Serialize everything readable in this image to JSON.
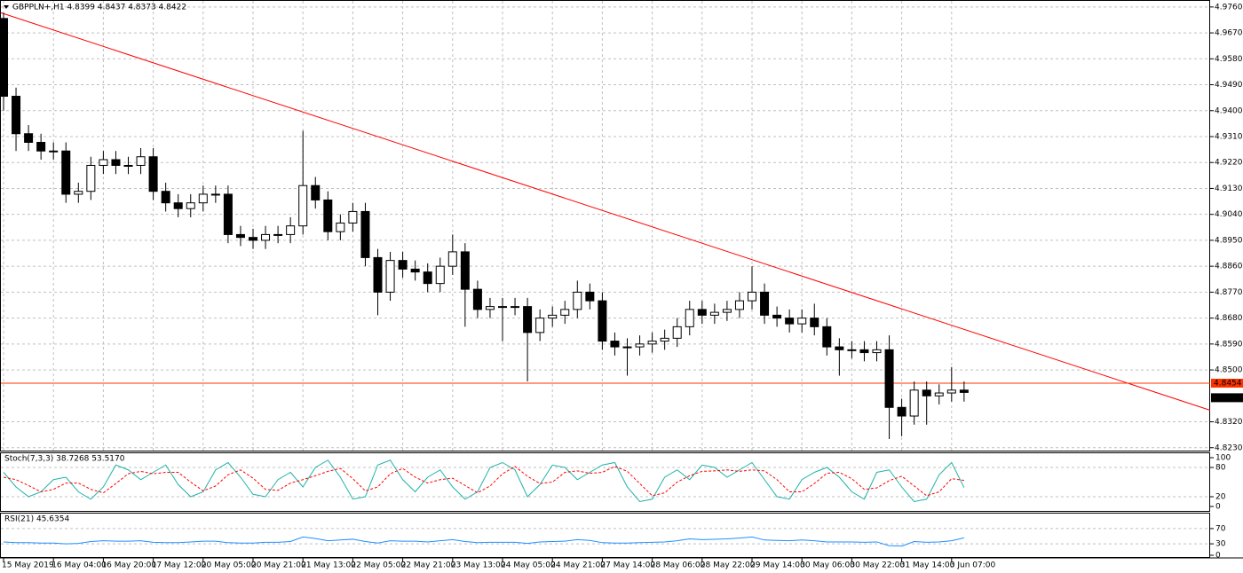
{
  "chart_data": [
    {
      "type": "candlestick",
      "title": "GBPPLN+,H1 4.8399 4.8437 4.8373 4.8422",
      "x_labels": [
        "15 May 2019",
        "16 May 04:00",
        "16 May 20:00",
        "17 May 12:00",
        "20 May 05:00",
        "20 May 21:00",
        "21 May 13:00",
        "22 May 05:00",
        "22 May 21:00",
        "23 May 13:00",
        "24 May 05:00",
        "24 May 21:00",
        "27 May 14:00",
        "28 May 06:00",
        "28 May 22:00",
        "29 May 14:00",
        "30 May 06:00",
        "30 May 22:00",
        "31 May 14:00",
        "3 Jun 07:00"
      ],
      "open": [
        4.972,
        4.945,
        4.932,
        4.929,
        4.926,
        4.926,
        4.911,
        4.912,
        4.921,
        4.923,
        4.921,
        4.921,
        4.924,
        4.912,
        4.908,
        4.906,
        4.908,
        4.911,
        4.911,
        4.897,
        4.896,
        4.895,
        4.897,
        4.897,
        4.9,
        4.914,
        4.909,
        4.898,
        4.901,
        4.905,
        4.889,
        4.877,
        4.888,
        4.885,
        4.884,
        4.88,
        4.886,
        4.891,
        4.878,
        4.871,
        4.872,
        4.872,
        4.872,
        4.863,
        4.868,
        4.869,
        4.871,
        4.877,
        4.874,
        4.86,
        4.858,
        4.858,
        4.859,
        4.86,
        4.861,
        4.865,
        4.871,
        4.869,
        4.87,
        4.871,
        4.874,
        4.877,
        4.869,
        4.868,
        4.866,
        4.868,
        4.865,
        4.858,
        4.857,
        4.857,
        4.856,
        4.857,
        4.837,
        4.834,
        4.843,
        4.841,
        4.842,
        4.843
      ],
      "high": [
        4.974,
        4.948,
        4.935,
        4.932,
        4.929,
        4.929,
        4.915,
        4.924,
        4.926,
        4.926,
        4.924,
        4.927,
        4.927,
        4.915,
        4.911,
        4.911,
        4.914,
        4.914,
        4.914,
        4.9,
        4.899,
        4.9,
        4.9,
        4.903,
        4.933,
        4.917,
        4.912,
        4.904,
        4.908,
        4.908,
        4.892,
        4.891,
        4.891,
        4.888,
        4.887,
        4.889,
        4.897,
        4.894,
        4.881,
        4.875,
        4.875,
        4.875,
        4.875,
        4.871,
        4.872,
        4.874,
        4.881,
        4.88,
        4.877,
        4.863,
        4.861,
        4.862,
        4.863,
        4.864,
        4.868,
        4.874,
        4.874,
        4.873,
        4.874,
        4.877,
        4.886,
        4.88,
        4.872,
        4.871,
        4.871,
        4.873,
        4.868,
        4.861,
        4.86,
        4.86,
        4.86,
        4.862,
        4.84,
        4.846,
        4.846,
        4.845,
        4.851,
        4.846
      ],
      "low": [
        4.94,
        4.926,
        4.926,
        4.923,
        4.923,
        4.908,
        4.908,
        4.909,
        4.918,
        4.918,
        4.918,
        4.918,
        4.909,
        4.905,
        4.903,
        4.903,
        4.905,
        4.908,
        4.894,
        4.893,
        4.892,
        4.892,
        4.894,
        4.894,
        4.897,
        4.906,
        4.895,
        4.895,
        4.898,
        4.886,
        4.869,
        4.874,
        4.882,
        4.881,
        4.877,
        4.877,
        4.883,
        4.865,
        4.868,
        4.868,
        4.86,
        4.869,
        4.846,
        4.86,
        4.865,
        4.866,
        4.868,
        4.871,
        4.857,
        4.855,
        4.848,
        4.855,
        4.856,
        4.857,
        4.858,
        4.862,
        4.866,
        4.866,
        4.867,
        4.868,
        4.871,
        4.866,
        4.865,
        4.863,
        4.863,
        4.862,
        4.855,
        4.848,
        4.854,
        4.853,
        4.853,
        4.826,
        4.827,
        4.831,
        4.831,
        4.838,
        4.839,
        4.839
      ],
      "close": [
        4.945,
        4.932,
        4.929,
        4.926,
        4.926,
        4.911,
        4.912,
        4.921,
        4.923,
        4.921,
        4.921,
        4.924,
        4.912,
        4.908,
        4.906,
        4.908,
        4.911,
        4.911,
        4.897,
        4.896,
        4.895,
        4.897,
        4.897,
        4.9,
        4.914,
        4.909,
        4.898,
        4.901,
        4.905,
        4.889,
        4.877,
        4.888,
        4.885,
        4.884,
        4.88,
        4.886,
        4.891,
        4.878,
        4.871,
        4.872,
        4.872,
        4.872,
        4.863,
        4.868,
        4.869,
        4.871,
        4.877,
        4.874,
        4.86,
        4.858,
        4.858,
        4.859,
        4.86,
        4.861,
        4.865,
        4.871,
        4.869,
        4.87,
        4.871,
        4.874,
        4.877,
        4.869,
        4.868,
        4.866,
        4.868,
        4.865,
        4.858,
        4.857,
        4.857,
        4.856,
        4.857,
        4.837,
        4.834,
        4.843,
        4.841,
        4.842,
        4.843,
        4.8422
      ],
      "up_color": "#ffffff",
      "down_color": "#000000",
      "outline_color": "#000000",
      "ylim": [
        4.822,
        4.9778
      ],
      "yticks": [
        {
          "value": 4.976,
          "label": "4.9760"
        },
        {
          "value": 4.967,
          "label": "4.9670"
        },
        {
          "value": 4.958,
          "label": "4.9580"
        },
        {
          "value": 4.949,
          "label": "4.9490"
        },
        {
          "value": 4.94,
          "label": "4.9400"
        },
        {
          "value": 4.931,
          "label": "4.9310"
        },
        {
          "value": 4.922,
          "label": "4.9220"
        },
        {
          "value": 4.913,
          "label": "4.9130"
        },
        {
          "value": 4.904,
          "label": "4.9040"
        },
        {
          "value": 4.895,
          "label": "4.8950"
        },
        {
          "value": 4.886,
          "label": "4.8860"
        },
        {
          "value": 4.877,
          "label": "4.8770"
        },
        {
          "value": 4.868,
          "label": "4.8680"
        },
        {
          "value": 4.859,
          "label": "4.8590"
        },
        {
          "value": 4.85,
          "label": "4.8500"
        },
        {
          "value": 4.832,
          "label": "4.8320"
        },
        {
          "value": 4.823,
          "label": "4.8230"
        }
      ],
      "grid": true,
      "trendline": {
        "values": [
          4.974,
          4.836
        ],
        "color": "#ff0000"
      },
      "hline": {
        "value": 4.8454,
        "color": "#ff3300"
      }
    },
    {
      "type": "line",
      "title": "Stoch(7,3,3) 38.7268 53.5170",
      "series": [
        {
          "color": "#20b2aa",
          "dashed": false,
          "values": [
            70,
            40,
            20,
            30,
            55,
            60,
            30,
            15,
            40,
            85,
            75,
            55,
            70,
            85,
            45,
            20,
            30,
            75,
            90,
            60,
            25,
            20,
            55,
            70,
            40,
            80,
            95,
            60,
            15,
            20,
            85,
            95,
            55,
            30,
            60,
            75,
            40,
            15,
            30,
            80,
            90,
            75,
            20,
            45,
            85,
            80,
            55,
            70,
            85,
            90,
            40,
            10,
            15,
            60,
            75,
            55,
            85,
            80,
            60,
            75,
            90,
            55,
            20,
            15,
            55,
            70,
            80,
            60,
            30,
            15,
            70,
            75,
            40,
            10,
            15,
            65,
            90,
            38.7268
          ]
        },
        {
          "color": "#ff0000",
          "dashed": true,
          "values": [
            60,
            55,
            43,
            30,
            35,
            48,
            48,
            35,
            28,
            47,
            67,
            72,
            67,
            70,
            70,
            50,
            32,
            42,
            65,
            75,
            58,
            35,
            33,
            48,
            55,
            63,
            72,
            78,
            57,
            32,
            40,
            67,
            78,
            60,
            48,
            55,
            58,
            43,
            28,
            42,
            67,
            82,
            62,
            47,
            50,
            70,
            73,
            68,
            70,
            82,
            72,
            47,
            22,
            28,
            50,
            63,
            72,
            73,
            75,
            72,
            75,
            73,
            55,
            30,
            30,
            47,
            68,
            70,
            57,
            35,
            38,
            53,
            62,
            42,
            22,
            30,
            57,
            53.517
          ]
        }
      ],
      "ylim": [
        0,
        100
      ],
      "yticks": [
        100,
        80,
        20,
        0
      ]
    },
    {
      "type": "line",
      "title": "RSI(21) 45.6354",
      "series": [
        {
          "color": "#1e90ff",
          "dashed": false,
          "values": [
            35,
            33,
            33,
            32,
            32,
            30,
            31,
            36,
            38,
            37,
            37,
            38,
            34,
            33,
            33,
            35,
            37,
            37,
            33,
            32,
            32,
            34,
            34,
            36,
            48,
            44,
            38,
            40,
            42,
            36,
            32,
            38,
            37,
            37,
            35,
            38,
            41,
            36,
            33,
            34,
            34,
            34,
            31,
            35,
            36,
            37,
            41,
            39,
            33,
            32,
            32,
            33,
            34,
            35,
            38,
            43,
            41,
            42,
            43,
            45,
            48,
            40,
            39,
            38,
            40,
            38,
            35,
            35,
            35,
            34,
            35,
            25,
            24,
            36,
            34,
            35,
            38,
            45.6354
          ]
        }
      ],
      "ylim": [
        0,
        100
      ],
      "yticks": [
        70,
        30,
        0
      ]
    }
  ]
}
